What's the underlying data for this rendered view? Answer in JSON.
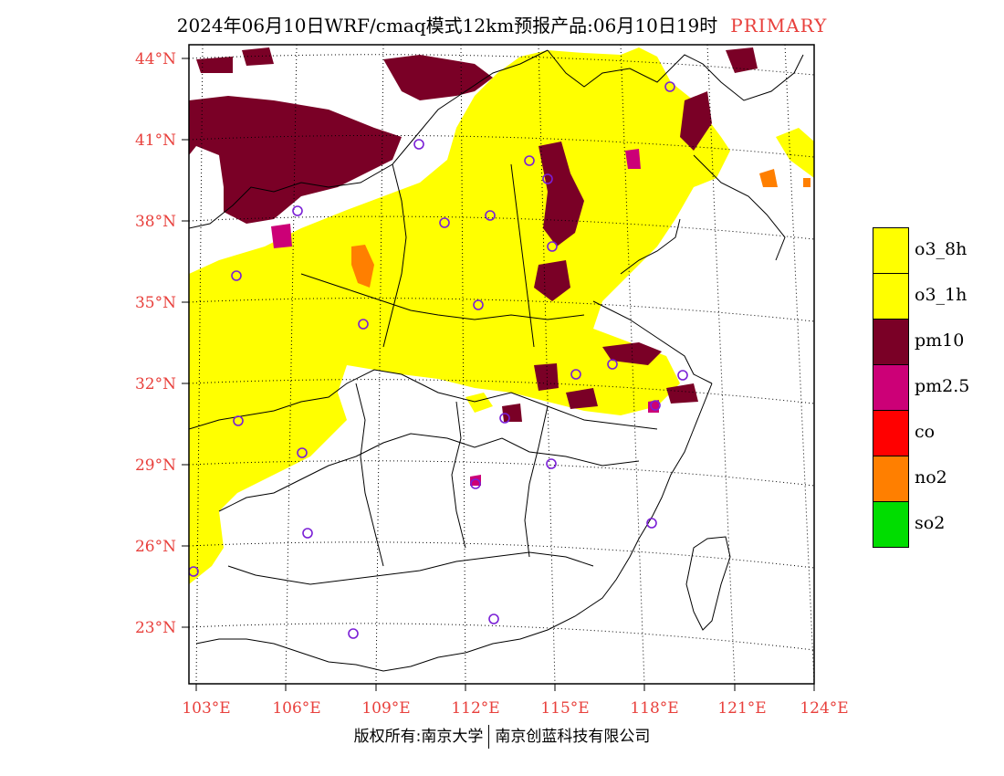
{
  "title": {
    "main": "2024年06月10日WRF/cmaq模式12km预报产品:06月10日19时",
    "tag": "PRIMARY"
  },
  "map": {
    "lat_labels": [
      "44°N",
      "41°N",
      "38°N",
      "35°N",
      "32°N",
      "29°N",
      "26°N",
      "23°N"
    ],
    "lon_labels": [
      "103°E",
      "106°E",
      "109°E",
      "112°E",
      "115°E",
      "118°E",
      "121°E",
      "124°E"
    ],
    "colors": {
      "background": "#ffffff",
      "frame": "#000000",
      "label": "#e8403c",
      "station_marker": "#7a1fd6"
    }
  },
  "legend": {
    "items": [
      {
        "label": "o3_8h",
        "color": "#ffff00"
      },
      {
        "label": "o3_1h",
        "color": "#ffff00"
      },
      {
        "label": "pm10",
        "color": "#7a0026"
      },
      {
        "label": "pm2.5",
        "color": "#cc0077"
      },
      {
        "label": "co",
        "color": "#ff0000"
      },
      {
        "label": "no2",
        "color": "#ff7f00"
      },
      {
        "label": "so2",
        "color": "#00dd00"
      }
    ]
  },
  "footer": {
    "left": "版权所有:南京大学",
    "right": "南京创蓝科技有限公司"
  }
}
